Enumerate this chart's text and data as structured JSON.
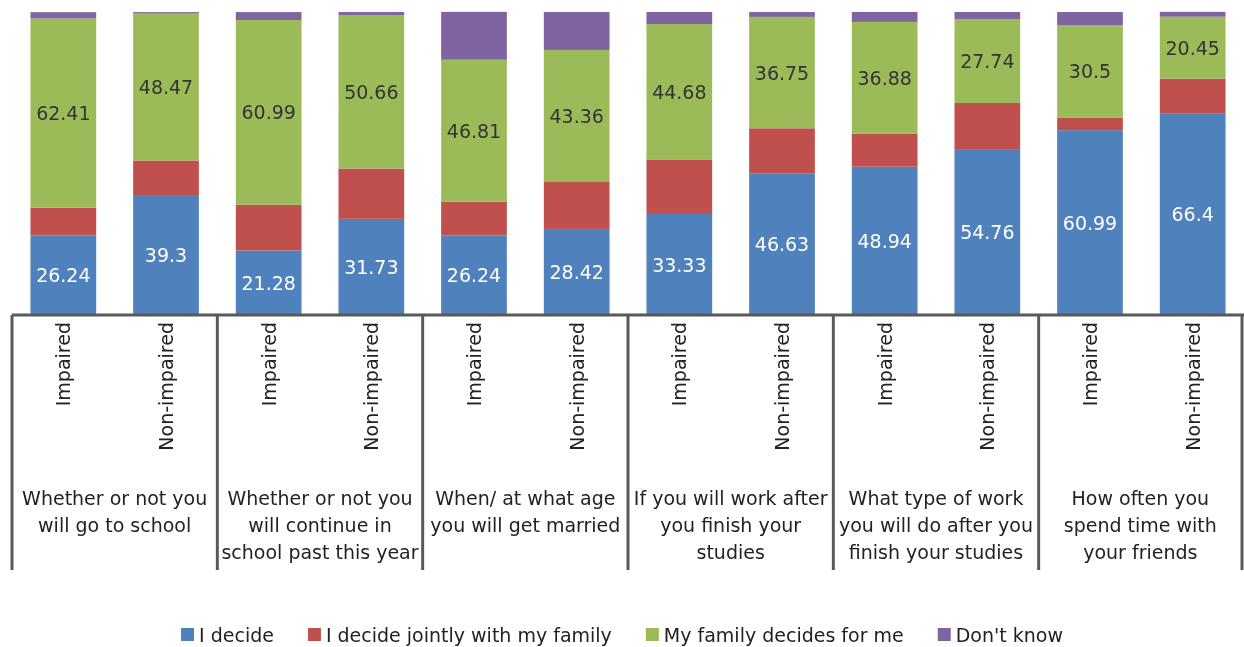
{
  "chart_data": {
    "type": "bar",
    "stacked": true,
    "ylim": [
      0,
      100
    ],
    "tick_labels": "x",
    "legend": "bottom",
    "categories": [
      "Impaired",
      "Non-impaired",
      "Impaired",
      "Non-impaired",
      "Impaired",
      "Non-impaired",
      "Impaired",
      "Non-impaired",
      "Impaired",
      "Non-impaired",
      "Impaired",
      "Non-impaired"
    ],
    "annotations": [
      "Whether or not you will go to school",
      "Whether or not you will continue in school past this year",
      "When/ at what age you will get married",
      "If you will work after you finish your studies",
      "What type of work you will do after you finish your studies",
      "How often you spend time with your friends"
    ],
    "series": [
      {
        "name": "I decide",
        "color": "#4f81bd",
        "values": [
          26.24,
          39.3,
          21.28,
          31.73,
          26.24,
          28.42,
          33.33,
          46.63,
          48.94,
          54.76,
          60.99,
          66.4
        ],
        "value_labels": [
          "26.24",
          "39.3",
          "21.28",
          "31.73",
          "26.24",
          "28.42",
          "33.33",
          "46.63",
          "48.94",
          "54.76",
          "60.99",
          "66.4"
        ]
      },
      {
        "name": "I decide jointly with my family",
        "color": "#c0504d",
        "values": [
          9.2,
          11.7,
          15.1,
          16.6,
          11.2,
          15.7,
          18.0,
          15.0,
          10.9,
          15.2,
          4.2,
          11.6
        ]
      },
      {
        "name": "My family decides for me",
        "color": "#9bbb59",
        "values": [
          62.41,
          48.47,
          60.99,
          50.66,
          46.81,
          43.36,
          44.68,
          36.75,
          36.88,
          27.74,
          30.5,
          20.45
        ],
        "value_labels": [
          "62.41",
          "48.47",
          "60.99",
          "50.66",
          "46.81",
          "43.36",
          "44.68",
          "36.75",
          "36.88",
          "27.74",
          "30.5",
          "20.45"
        ]
      },
      {
        "name": "Don't know",
        "color": "#8064a2",
        "values": [
          2.1,
          0.5,
          2.6,
          1.0,
          15.8,
          12.5,
          4.0,
          1.6,
          3.3,
          2.3,
          4.3,
          1.6
        ]
      }
    ]
  }
}
